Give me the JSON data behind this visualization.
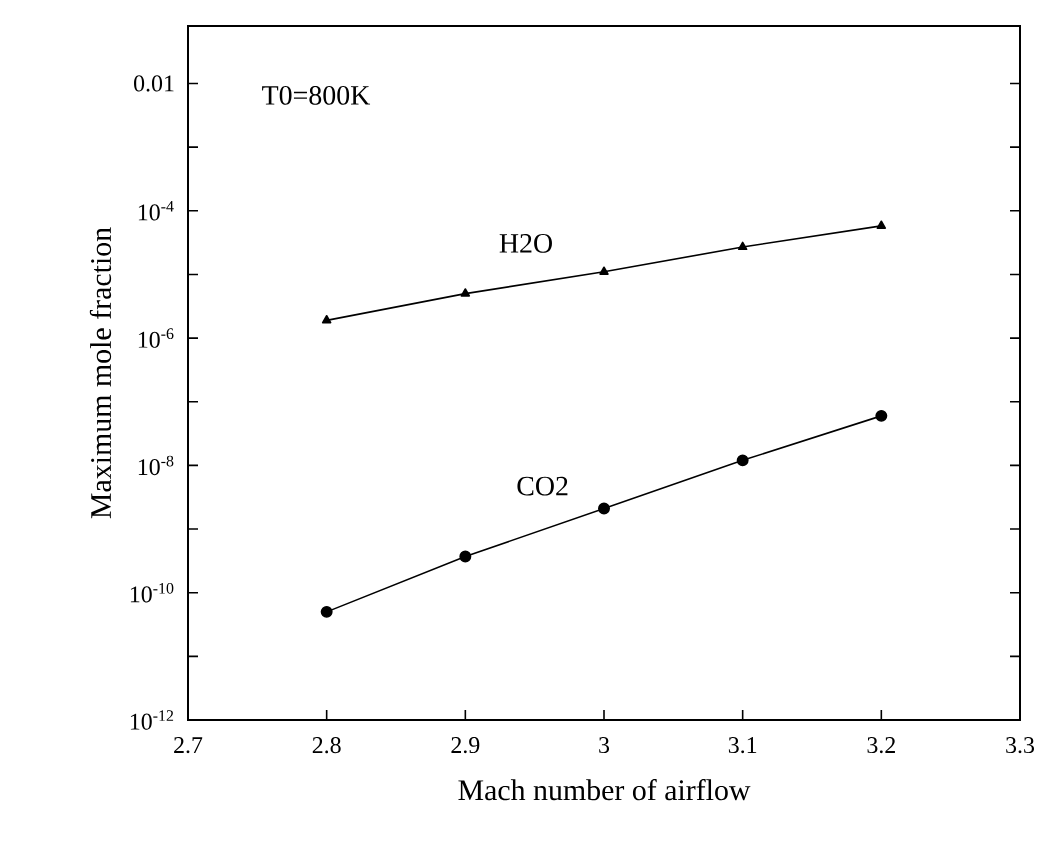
{
  "chart_data": {
    "type": "line",
    "xlabel": "Mach number of airflow",
    "ylabel": "Maximum mole fraction",
    "annotations": [
      "T0=800K"
    ],
    "x": [
      2.8,
      2.9,
      3.0,
      3.1,
      3.2
    ],
    "series": [
      {
        "name": "H2O",
        "color": "#000000",
        "marker": "triangle",
        "values": [
          1.9e-06,
          5e-06,
          1.1e-05,
          2.7e-05,
          5.8e-05
        ]
      },
      {
        "name": "CO2",
        "color": "#000000",
        "marker": "circle",
        "values": [
          5e-11,
          3.7e-10,
          2.1e-09,
          1.2e-08,
          6e-08
        ]
      }
    ],
    "log": "y",
    "grid": false,
    "line_style": "solid",
    "xlim": [
      2.7,
      3.3
    ],
    "xticks": [
      2.7,
      2.8,
      2.9,
      3,
      3.1,
      3.2,
      3.3
    ],
    "ylim": [
      1e-12,
      0.08
    ],
    "yticks": [
      {
        "value": 1e-12,
        "label": "10$^{-12}$"
      },
      {
        "value": 1e-11,
        "label": null
      },
      {
        "value": 1e-10,
        "label": "10$^{-10}$"
      },
      {
        "value": 1e-09,
        "label": null
      },
      {
        "value": 1e-08,
        "label": "10$^{-8}$"
      },
      {
        "value": 1e-07,
        "label": null
      },
      {
        "value": 1e-06,
        "label": "10$^{-6}$"
      },
      {
        "value": 1e-05,
        "label": null
      },
      {
        "value": 0.0001,
        "label": "10$^{-4}$"
      },
      {
        "value": 0.001,
        "label": null
      },
      0.01
    ]
  }
}
